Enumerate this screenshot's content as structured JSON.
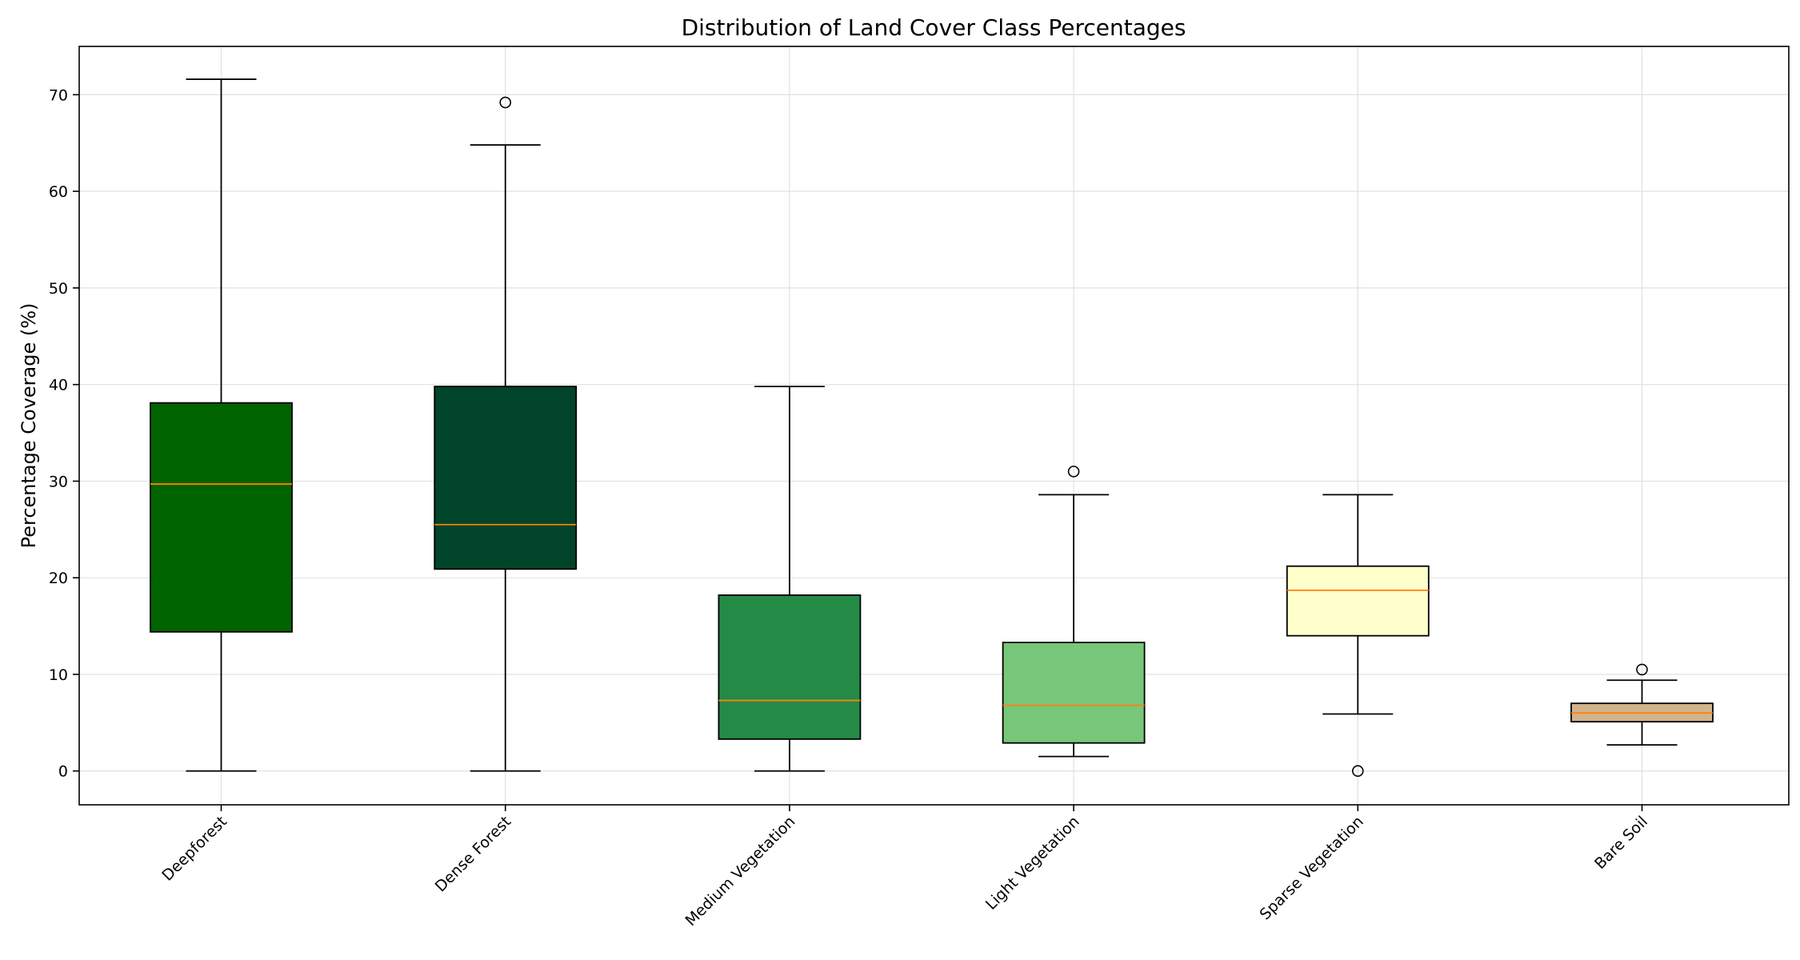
{
  "chart_data": {
    "type": "box",
    "title": "Distribution of Land Cover Class Percentages",
    "xlabel": "",
    "ylabel": "Percentage Coverage (%)",
    "ylim": [
      -3.5,
      75
    ],
    "yticks": [
      0,
      10,
      20,
      30,
      40,
      50,
      60,
      70
    ],
    "grid": true,
    "categories": [
      "Deepforest",
      "Dense Forest",
      "Medium Vegetation",
      "Light Vegetation",
      "Sparse Vegetation",
      "Bare Soil"
    ],
    "boxes": [
      {
        "category": "Deepforest",
        "whisker_low": 0,
        "q1": 14.4,
        "median": 29.7,
        "q3": 38.1,
        "whisker_high": 71.6,
        "outliers": [],
        "color": "#006400"
      },
      {
        "category": "Dense Forest",
        "whisker_low": 0,
        "q1": 20.9,
        "median": 25.5,
        "q3": 39.8,
        "whisker_high": 64.8,
        "outliers": [
          69.2
        ],
        "color": "#00442a"
      },
      {
        "category": "Medium Vegetation",
        "whisker_low": 0,
        "q1": 3.3,
        "median": 7.3,
        "q3": 18.2,
        "whisker_high": 39.8,
        "outliers": [],
        "color": "#238b45"
      },
      {
        "category": "Light Vegetation",
        "whisker_low": 1.5,
        "q1": 2.9,
        "median": 6.8,
        "q3": 13.3,
        "whisker_high": 28.6,
        "outliers": [
          31.0
        ],
        "color": "#78c679"
      },
      {
        "category": "Sparse Vegetation",
        "whisker_low": 5.9,
        "q1": 14.0,
        "median": 18.7,
        "q3": 21.2,
        "whisker_high": 28.6,
        "outliers": [
          0
        ],
        "color": "#ffffcc"
      },
      {
        "category": "Bare Soil",
        "whisker_low": 2.7,
        "q1": 5.1,
        "median": 6.0,
        "q3": 7.0,
        "whisker_high": 9.4,
        "outliers": [
          10.5
        ],
        "color": "#d2b48c"
      }
    ],
    "median_color": "#ff7f0e"
  }
}
